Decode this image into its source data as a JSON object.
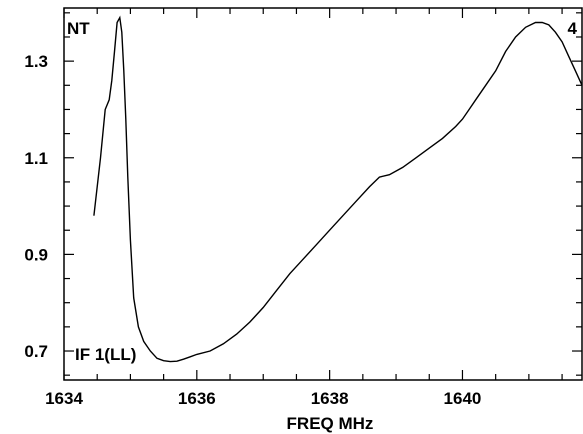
{
  "chart_data": {
    "type": "line",
    "title": "",
    "xlabel": "FREQ MHz",
    "ylabel": "",
    "xlim": [
      1634,
      1641.8
    ],
    "ylim": [
      0.64,
      1.41
    ],
    "xticks": [
      1634,
      1636,
      1638,
      1640
    ],
    "yticks": [
      0.7,
      0.9,
      1.1,
      1.3
    ],
    "xtick_labels": [
      "1634",
      "1636",
      "1638",
      "1640"
    ],
    "ytick_labels": [
      "0.7",
      "0.9",
      "1.1",
      "1.3"
    ],
    "top_left_label": "NT",
    "top_right_label": "4",
    "annotation": "IF 1(LL)",
    "grid": false,
    "series": [
      {
        "x": [
          1634.45,
          1634.55,
          1634.62,
          1634.68,
          1634.72,
          1634.76,
          1634.8,
          1634.84,
          1634.87,
          1634.9,
          1634.93,
          1634.96,
          1635.0,
          1635.05,
          1635.12,
          1635.2,
          1635.3,
          1635.4,
          1635.5,
          1635.6,
          1635.7,
          1635.8,
          1635.9,
          1636.0,
          1636.2,
          1636.4,
          1636.6,
          1636.8,
          1637.0,
          1637.2,
          1637.4,
          1637.6,
          1637.8,
          1638.0,
          1638.2,
          1638.4,
          1638.6,
          1638.75,
          1638.9,
          1639.1,
          1639.3,
          1639.5,
          1639.7,
          1639.9,
          1640.0,
          1640.1,
          1640.2,
          1640.35,
          1640.5,
          1640.65,
          1640.8,
          1640.95,
          1641.1,
          1641.2,
          1641.3,
          1641.4,
          1641.5,
          1641.6,
          1641.7,
          1641.8
        ],
        "y": [
          0.98,
          1.1,
          1.2,
          1.22,
          1.26,
          1.32,
          1.38,
          1.39,
          1.36,
          1.28,
          1.18,
          1.06,
          0.93,
          0.81,
          0.75,
          0.72,
          0.7,
          0.685,
          0.68,
          0.678,
          0.679,
          0.683,
          0.688,
          0.693,
          0.7,
          0.715,
          0.735,
          0.76,
          0.79,
          0.825,
          0.86,
          0.89,
          0.92,
          0.95,
          0.98,
          1.01,
          1.04,
          1.06,
          1.065,
          1.08,
          1.1,
          1.12,
          1.14,
          1.165,
          1.18,
          1.2,
          1.22,
          1.25,
          1.28,
          1.32,
          1.35,
          1.37,
          1.38,
          1.38,
          1.375,
          1.36,
          1.34,
          1.31,
          1.28,
          1.25
        ]
      }
    ]
  }
}
